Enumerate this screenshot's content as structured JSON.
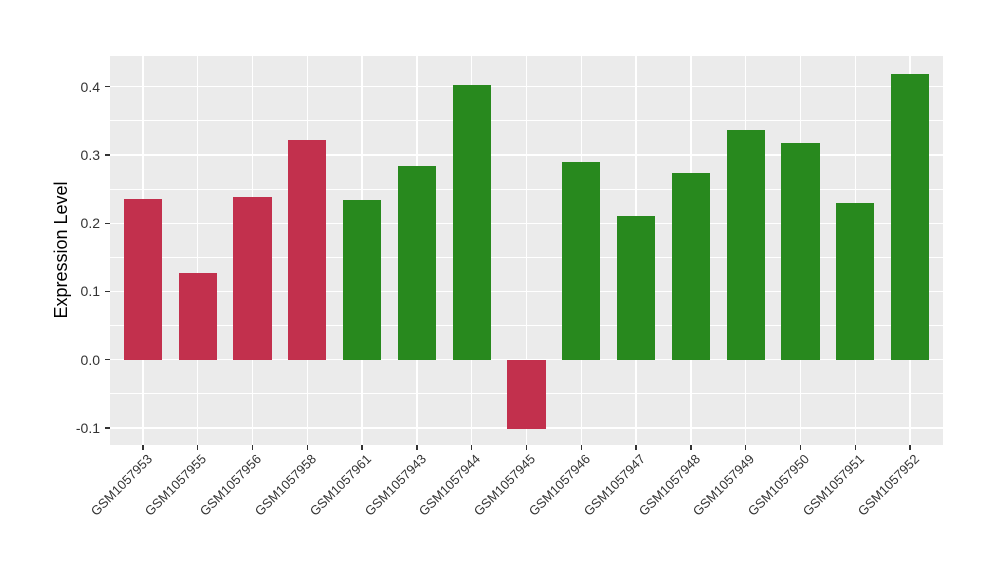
{
  "figure": {
    "background": "#ffffff",
    "panel_background": "#ebebeb",
    "gridline_color": "#ffffff",
    "axis_text_color": "#333333",
    "tick_mark_color": "#333333",
    "axis_title_color": "#000000"
  },
  "chart_data": {
    "type": "bar",
    "title": "",
    "xlabel": "",
    "ylabel": "Expression Level",
    "ylim": [
      -0.125,
      0.445
    ],
    "y_ticks": [
      -0.1,
      0.0,
      0.1,
      0.2,
      0.3,
      0.4
    ],
    "grid": "white major and minor horizontal lines, white vertical line at each category, on gray panel",
    "legend_position": "none",
    "categories": [
      "GSM1057953",
      "GSM1057955",
      "GSM1057956",
      "GSM1057958",
      "GSM1057961",
      "GSM1057943",
      "GSM1057944",
      "GSM1057945",
      "GSM1057946",
      "GSM1057947",
      "GSM1057948",
      "GSM1057949",
      "GSM1057950",
      "GSM1057951",
      "GSM1057952"
    ],
    "values": [
      0.235,
      0.127,
      0.238,
      0.322,
      0.234,
      0.284,
      0.403,
      -0.102,
      0.289,
      0.211,
      0.274,
      0.337,
      0.318,
      0.23,
      0.419
    ],
    "bar_colors": [
      "#c2304d",
      "#c2304d",
      "#c2304d",
      "#c2304d",
      "#28891e",
      "#28891e",
      "#28891e",
      "#c2304d",
      "#28891e",
      "#28891e",
      "#28891e",
      "#28891e",
      "#28891e",
      "#28891e",
      "#28891e"
    ],
    "palette": {
      "red": "#c2304d",
      "green": "#28891e"
    }
  }
}
